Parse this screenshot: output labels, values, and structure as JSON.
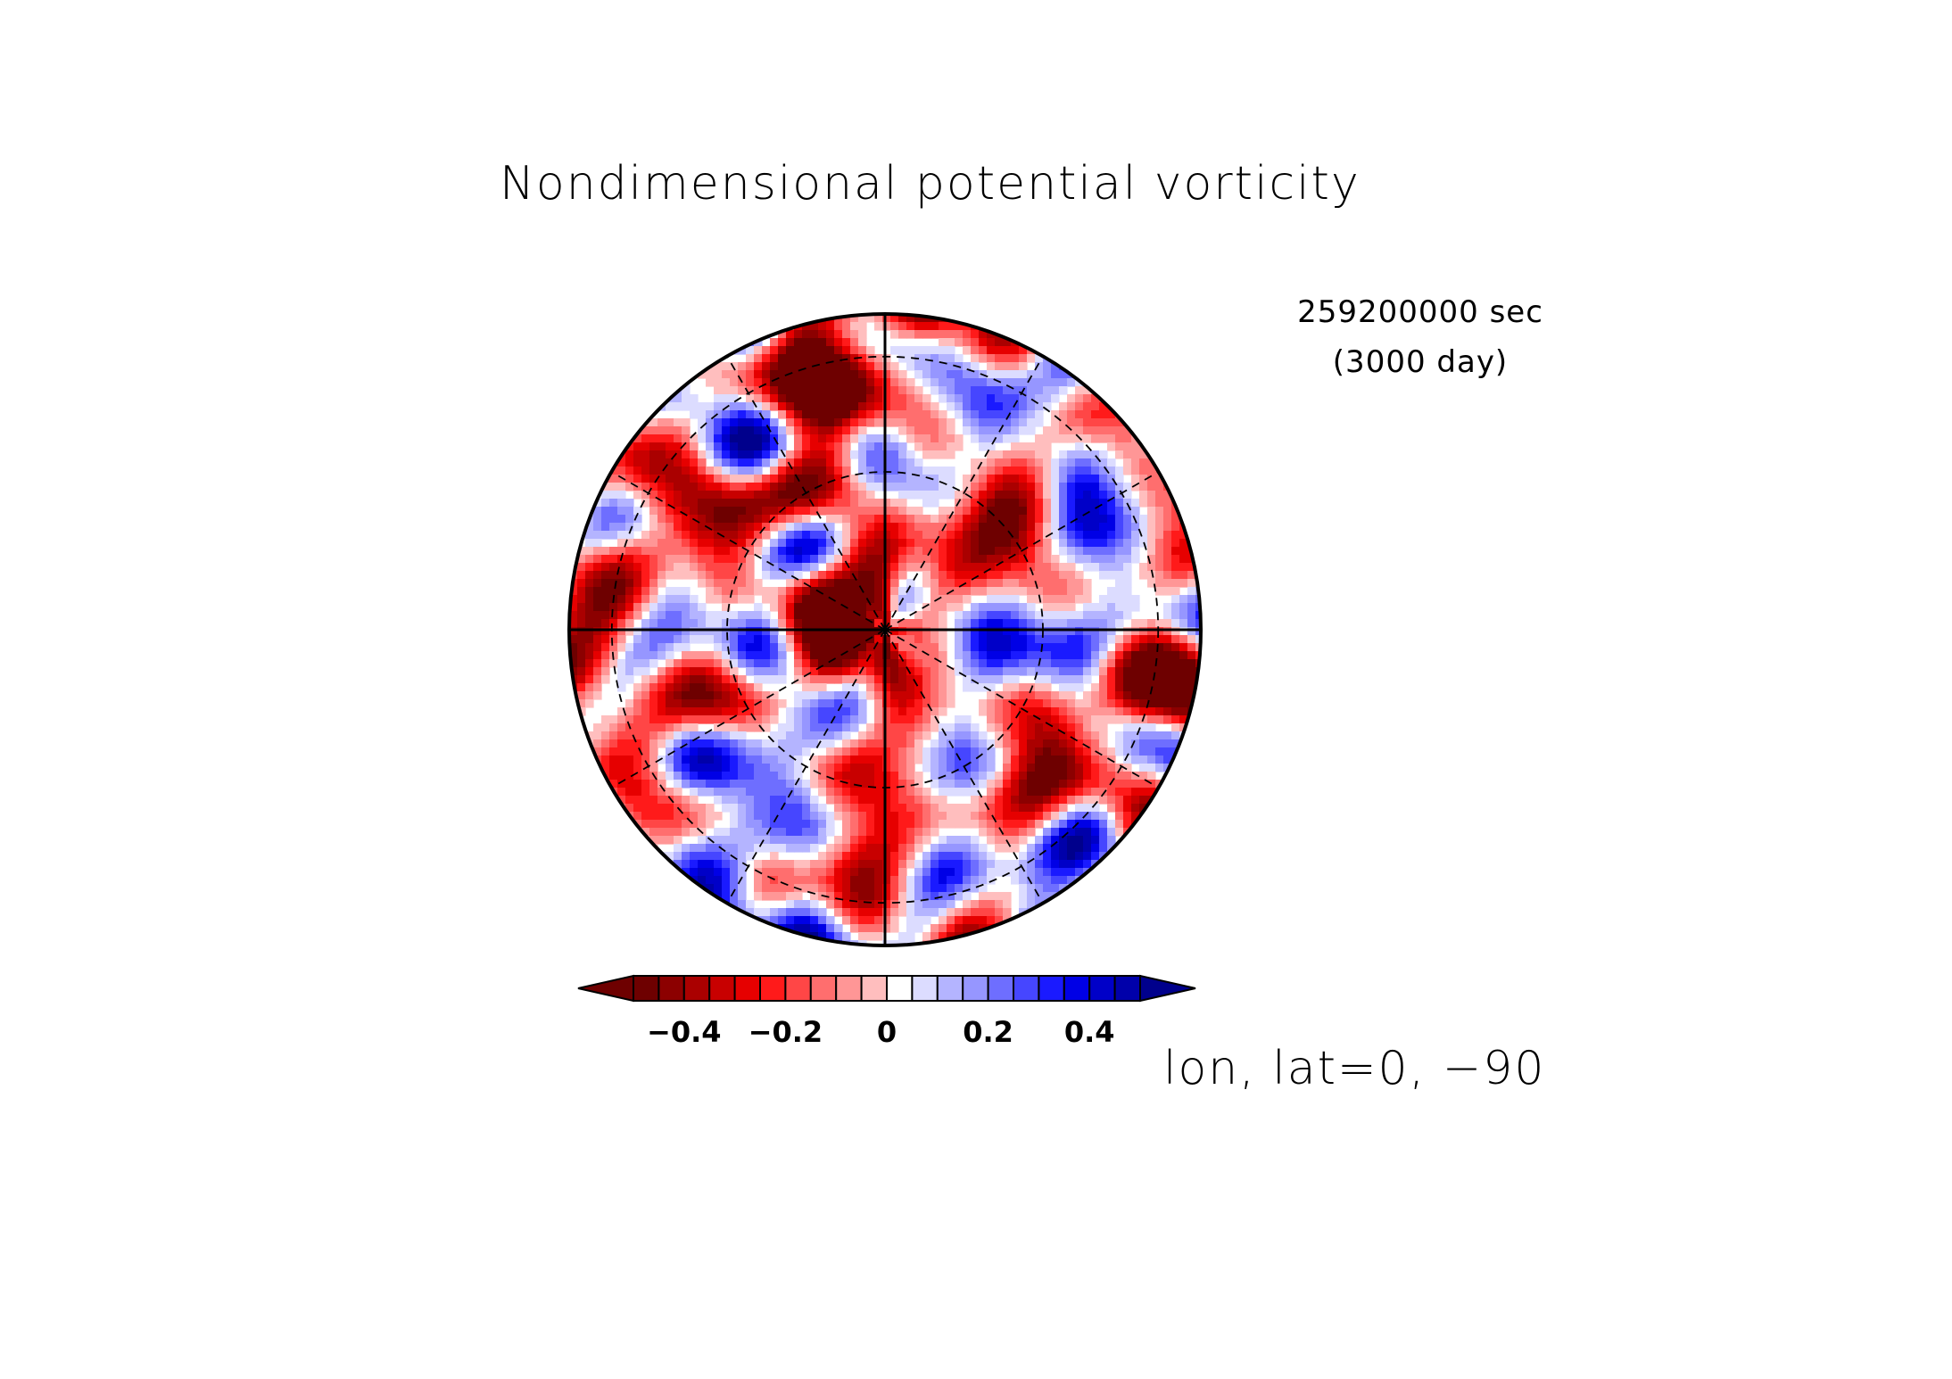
{
  "title": "Nondimensional potential vorticity",
  "time": {
    "seconds_label": "259200000 sec",
    "days_label": "(3000 day)"
  },
  "projection_label": "lon, lat=0, −90",
  "chart_data": {
    "type": "heatmap",
    "projection": "polar-stereographic",
    "title": "Nondimensional potential vorticity",
    "grid": true,
    "meridians_deg": [
      0,
      30,
      60,
      90,
      120,
      150,
      180,
      210,
      240,
      270,
      300,
      330
    ],
    "colorbar": {
      "orientation": "horizontal",
      "placement": "bottom",
      "extend": "both",
      "range": [
        -0.5,
        0.5
      ],
      "step": 0.05,
      "ticks": [
        {
          "value": -0.4,
          "label": "−0.4"
        },
        {
          "value": -0.2,
          "label": "−0.2"
        },
        {
          "value": 0,
          "label": "0"
        },
        {
          "value": 0.2,
          "label": "0.2"
        },
        {
          "value": 0.4,
          "label": "0.4"
        }
      ],
      "colors": [
        "#6e0000",
        "#8c0000",
        "#aa0000",
        "#c80000",
        "#e60000",
        "#ff1a1a",
        "#ff4646",
        "#ff6e6e",
        "#ff9696",
        "#ffbebe",
        "#ffffff",
        "#dcdcff",
        "#b4b4ff",
        "#9696ff",
        "#6e6eff",
        "#4646ff",
        "#1a1aff",
        "#0000e6",
        "#0000c8",
        "#0000aa"
      ],
      "under_color": "#6e0000",
      "over_color": "#00008c"
    },
    "field_note_values": {
      "center_value": -0.35,
      "min": -0.5,
      "max": 0.5
    }
  }
}
